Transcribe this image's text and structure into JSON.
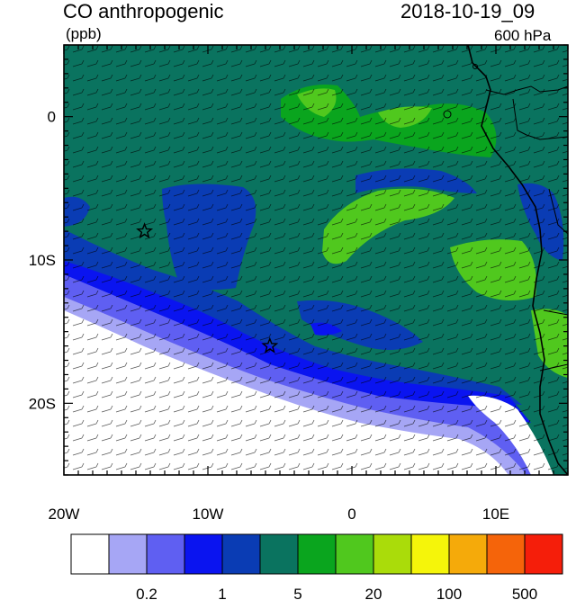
{
  "header": {
    "title": "CO anthropogenic",
    "units": "(ppb)",
    "time": "2018-10-19_09",
    "level": "600 hPa"
  },
  "map": {
    "lon_range": [
      -20,
      15
    ],
    "lat_range": [
      -25,
      5
    ],
    "lon_ticks": [
      {
        "value": -20,
        "label": "20W"
      },
      {
        "value": -10,
        "label": "10W"
      },
      {
        "value": 0,
        "label": "0"
      },
      {
        "value": 10,
        "label": "10E"
      }
    ],
    "lat_ticks": [
      {
        "value": 0,
        "label": "0"
      },
      {
        "value": -10,
        "label": "10S"
      },
      {
        "value": -20,
        "label": "20S"
      }
    ],
    "markers": [
      {
        "name": "site-1",
        "lon": -14.4,
        "lat": -8.0
      },
      {
        "name": "site-2",
        "lon": -5.7,
        "lat": -16.0
      }
    ]
  },
  "colorbar": {
    "colors": [
      "#ffffff",
      "#a6a6f5",
      "#5f5ff2",
      "#0a14f0",
      "#0a3cb4",
      "#0a735f",
      "#0aa51e",
      "#50c81e",
      "#aadc0a",
      "#f5f50a",
      "#f5aa0a",
      "#f5640a",
      "#f51e0a"
    ],
    "labels": [
      {
        "after_box": 2,
        "text": "0.2"
      },
      {
        "after_box": 4,
        "text": "1"
      },
      {
        "after_box": 6,
        "text": "5"
      },
      {
        "after_box": 8,
        "text": "20"
      },
      {
        "after_box": 10,
        "text": "100"
      },
      {
        "after_box": 12,
        "text": "500"
      }
    ]
  }
}
